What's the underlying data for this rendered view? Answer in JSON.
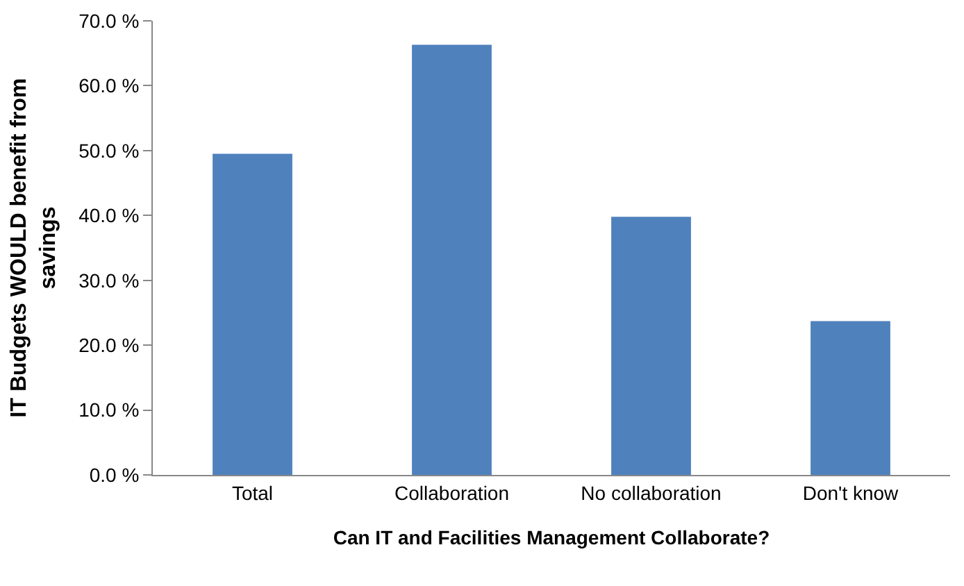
{
  "chart_data": {
    "type": "bar",
    "xlabel": "Can IT and Facilities Management Collaborate?",
    "ylabel": "IT Budgets WOULD benefit from savings",
    "categories": [
      "Total",
      "Collaboration",
      "No collaboration",
      "Don't know"
    ],
    "values": [
      49.5,
      66.3,
      39.8,
      23.7
    ],
    "color": "#4f81bd",
    "ylim": [
      0,
      70
    ],
    "yticks": [
      {
        "value": 0,
        "label": "0.0 %"
      },
      {
        "value": 10,
        "label": "10.0 %"
      },
      {
        "value": 20,
        "label": "20.0 %"
      },
      {
        "value": 30,
        "label": "30.0 %"
      },
      {
        "value": 40,
        "label": "40.0 %"
      },
      {
        "value": 50,
        "label": "50.0 %"
      },
      {
        "value": 60,
        "label": "60.0 %"
      },
      {
        "value": 70,
        "label": "70.0 %"
      }
    ],
    "grid": false,
    "legend": false
  }
}
